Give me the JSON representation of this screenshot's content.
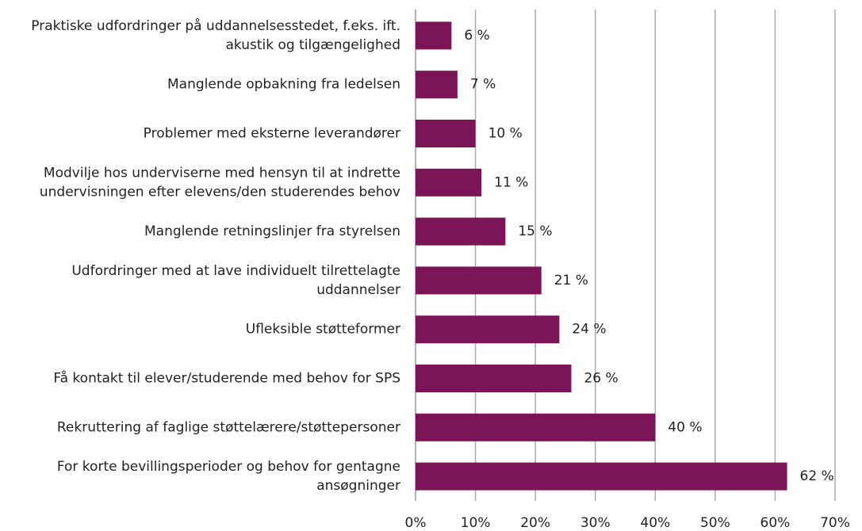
{
  "chart_data": {
    "type": "bar",
    "orientation": "horizontal",
    "categories": [
      [
        "Praktiske udfordringer på uddannelsesstedet, f.eks. ift.",
        "akustik og tilgængelighed"
      ],
      [
        "Manglende opbakning fra ledelsen"
      ],
      [
        "Problemer med eksterne leverandører"
      ],
      [
        "Modvilje hos underviserne med hensyn til at indrette",
        "undervisningen efter elevens/den studerendes behov"
      ],
      [
        "Manglende retningslinjer fra styrelsen"
      ],
      [
        "Udfordringer med at lave individuelt tilrettelagte",
        "uddannelser"
      ],
      [
        "Ufleksible støtteformer"
      ],
      [
        "Få kontakt til elever/studerende med behov for SPS"
      ],
      [
        "Rekruttering af faglige støttelærere/støttepersoner"
      ],
      [
        "For korte bevillingsperioder og behov for gentagne",
        "ansøgninger"
      ]
    ],
    "values": [
      6,
      7,
      10,
      11,
      15,
      21,
      24,
      26,
      40,
      62
    ],
    "value_labels": [
      "6 %",
      "7 %",
      "10 %",
      "11 %",
      "15 %",
      "21 %",
      "24 %",
      "26 %",
      "40 %",
      "62 %"
    ],
    "color": "#7b1557",
    "xlim": [
      0,
      70
    ],
    "xticks": [
      {
        "value": 0,
        "label": "0%"
      },
      {
        "value": 10,
        "label": "10%"
      },
      {
        "value": 20,
        "label": "20%"
      },
      {
        "value": 30,
        "label": "30%"
      },
      {
        "value": 40,
        "label": "40%"
      },
      {
        "value": 50,
        "label": "50%"
      },
      {
        "value": 60,
        "label": "60%"
      },
      {
        "value": 70,
        "label": "70%"
      }
    ],
    "grid": true
  }
}
